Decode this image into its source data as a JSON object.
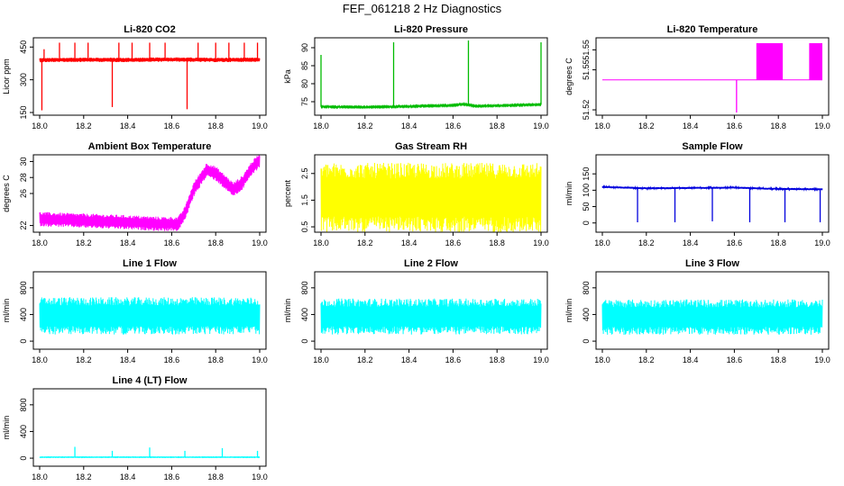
{
  "figure": {
    "title": "FEF_061218  2 Hz Diagnostics"
  },
  "chart_data": [
    {
      "type": "line",
      "title": "Li-820 CO2",
      "ylabel": "Licor ppm",
      "color": "#ff0000",
      "xlim": [
        18.0,
        19.0
      ],
      "ylim": [
        150,
        480
      ],
      "xticks": [
        "18.0",
        "18.2",
        "18.4",
        "18.6",
        "18.8",
        "19.0"
      ],
      "yticks": [
        "150",
        "300",
        "450"
      ],
      "baseline": [
        [
          18.0,
          390
        ],
        [
          18.2,
          392
        ],
        [
          18.4,
          391
        ],
        [
          18.6,
          393
        ],
        [
          18.8,
          391
        ],
        [
          19.0,
          392
        ]
      ],
      "band": 10,
      "spikes": [
        [
          18.01,
          160
        ],
        [
          18.02,
          440
        ],
        [
          18.09,
          470
        ],
        [
          18.16,
          470
        ],
        [
          18.22,
          470
        ],
        [
          18.33,
          175
        ],
        [
          18.36,
          470
        ],
        [
          18.42,
          470
        ],
        [
          18.5,
          470
        ],
        [
          18.57,
          470
        ],
        [
          18.67,
          165
        ],
        [
          18.72,
          470
        ],
        [
          18.8,
          470
        ],
        [
          18.86,
          470
        ],
        [
          18.93,
          470
        ],
        [
          18.99,
          470
        ]
      ]
    },
    {
      "type": "line",
      "title": "Li-820 Pressure",
      "ylabel": "kPa",
      "color": "#00bb00",
      "xlim": [
        18.0,
        19.0
      ],
      "ylim": [
        72,
        92
      ],
      "xticks": [
        "18.0",
        "18.2",
        "18.4",
        "18.6",
        "18.8",
        "19.0"
      ],
      "yticks": [
        "75",
        "80",
        "85",
        "90"
      ],
      "baseline": [
        [
          18.0,
          73.6
        ],
        [
          18.2,
          73.5
        ],
        [
          18.4,
          73.7
        ],
        [
          18.6,
          74.0
        ],
        [
          18.65,
          74.3
        ],
        [
          18.7,
          73.8
        ],
        [
          18.8,
          73.9
        ],
        [
          19.0,
          74.2
        ]
      ],
      "band": 0.2,
      "spikes": [
        [
          18.0,
          88
        ],
        [
          18.33,
          91.5
        ],
        [
          18.67,
          92
        ],
        [
          19.0,
          91.5
        ]
      ]
    },
    {
      "type": "line",
      "title": "Li-820 Temperature",
      "ylabel": "degrees C",
      "color": "#ff00ff",
      "xlim": [
        18.0,
        19.0
      ],
      "ylim": [
        51.518,
        51.572
      ],
      "xticks": [
        "18.0",
        "18.2",
        "18.4",
        "18.6",
        "18.8",
        "19.0"
      ],
      "yticks": [
        "51.52",
        "51.55",
        "51.55"
      ],
      "baseline": [
        [
          18.0,
          51.5425
        ],
        [
          19.0,
          51.5425
        ]
      ],
      "band": 0,
      "spikes": [
        [
          18.61,
          51.518
        ]
      ],
      "blocks": [
        [
          18.7,
          18.82,
          51.5425,
          51.57
        ],
        [
          18.94,
          19.0,
          51.5425,
          51.57
        ]
      ]
    },
    {
      "type": "line",
      "title": "Ambient Box Temperature",
      "ylabel": "degrees C",
      "color": "#ff00ff",
      "xlim": [
        18.0,
        19.0
      ],
      "ylim": [
        21.5,
        30.5
      ],
      "xticks": [
        "18.0",
        "18.2",
        "18.4",
        "18.6",
        "18.8",
        "19.0"
      ],
      "yticks": [
        "22",
        "26",
        "28",
        "30"
      ],
      "baseline": [
        [
          18.0,
          22.8
        ],
        [
          18.2,
          22.6
        ],
        [
          18.4,
          22.4
        ],
        [
          18.55,
          22.2
        ],
        [
          18.63,
          22.2
        ],
        [
          18.66,
          23.5
        ],
        [
          18.7,
          26.5
        ],
        [
          18.76,
          29.0
        ],
        [
          18.8,
          28.5
        ],
        [
          18.88,
          26.5
        ],
        [
          18.92,
          27.3
        ],
        [
          18.96,
          29.0
        ],
        [
          19.0,
          30.2
        ]
      ],
      "band": 0.9,
      "spikes": []
    },
    {
      "type": "line",
      "title": "Gas Stream RH",
      "ylabel": "percent",
      "color": "#ffff00",
      "xlim": [
        18.0,
        19.0
      ],
      "ylim": [
        0.4,
        3.1
      ],
      "xticks": [
        "18.0",
        "18.2",
        "18.4",
        "18.6",
        "18.8",
        "19.0"
      ],
      "yticks": [
        "0.5",
        "1.5",
        "2.5"
      ],
      "baseline": [
        [
          18.0,
          1.6
        ],
        [
          19.0,
          1.6
        ]
      ],
      "band": 1.3,
      "spikes": []
    },
    {
      "type": "line",
      "title": "Sample Flow",
      "ylabel": "ml/min",
      "color": "#0000dd",
      "xlim": [
        18.0,
        19.0
      ],
      "ylim": [
        -20,
        200
      ],
      "xticks": [
        "18.0",
        "18.2",
        "18.4",
        "18.6",
        "18.8",
        "19.0"
      ],
      "yticks": [
        "0",
        "50",
        "100",
        "150"
      ],
      "baseline": [
        [
          18.0,
          110
        ],
        [
          18.2,
          106
        ],
        [
          18.4,
          107
        ],
        [
          18.6,
          108
        ],
        [
          18.8,
          104
        ],
        [
          19.0,
          103
        ]
      ],
      "band": 3,
      "spikes": [
        [
          18.16,
          2
        ],
        [
          18.33,
          2
        ],
        [
          18.49,
          112
        ],
        [
          18.5,
          5
        ],
        [
          18.67,
          2
        ],
        [
          18.83,
          2
        ],
        [
          18.99,
          2
        ]
      ]
    },
    {
      "type": "line",
      "title": "Line 1 Flow",
      "ylabel": "ml/min",
      "color": "#00ffff",
      "xlim": [
        18.0,
        19.0
      ],
      "ylim": [
        -80,
        1000
      ],
      "xticks": [
        "18.0",
        "18.2",
        "18.4",
        "18.6",
        "18.8",
        "19.0"
      ],
      "yticks": [
        "0",
        "400",
        "800"
      ],
      "baseline": [
        [
          18.0,
          380
        ],
        [
          19.0,
          380
        ]
      ],
      "band": 280,
      "spikes": []
    },
    {
      "type": "line",
      "title": "Line 2 Flow",
      "ylabel": "ml/min",
      "color": "#00ffff",
      "xlim": [
        18.0,
        19.0
      ],
      "ylim": [
        -80,
        1000
      ],
      "xticks": [
        "18.0",
        "18.2",
        "18.4",
        "18.6",
        "18.8",
        "19.0"
      ],
      "yticks": [
        "0",
        "400",
        "800"
      ],
      "baseline": [
        [
          18.0,
          370
        ],
        [
          19.0,
          370
        ]
      ],
      "band": 270,
      "spikes": []
    },
    {
      "type": "line",
      "title": "Line 3 Flow",
      "ylabel": "ml/min",
      "color": "#00ffff",
      "xlim": [
        18.0,
        19.0
      ],
      "ylim": [
        -80,
        1000
      ],
      "xticks": [
        "18.0",
        "18.2",
        "18.4",
        "18.6",
        "18.8",
        "19.0"
      ],
      "yticks": [
        "0",
        "400",
        "800"
      ],
      "baseline": [
        [
          18.0,
          360
        ],
        [
          19.0,
          360
        ]
      ],
      "band": 265,
      "spikes": []
    },
    {
      "type": "line",
      "title": "Line 4 (LT) Flow",
      "ylabel": "ml/min",
      "color": "#00ffff",
      "xlim": [
        18.0,
        19.0
      ],
      "ylim": [
        -80,
        1000
      ],
      "xticks": [
        "18.0",
        "18.2",
        "18.4",
        "18.6",
        "18.8",
        "19.0"
      ],
      "yticks": [
        "0",
        "400",
        "800"
      ],
      "baseline": [
        [
          18.0,
          15
        ],
        [
          19.0,
          15
        ]
      ],
      "band": 4,
      "spikes": [
        [
          18.16,
          170
        ],
        [
          18.33,
          110
        ],
        [
          18.5,
          160
        ],
        [
          18.66,
          110
        ],
        [
          18.83,
          150
        ],
        [
          18.99,
          110
        ]
      ]
    }
  ]
}
